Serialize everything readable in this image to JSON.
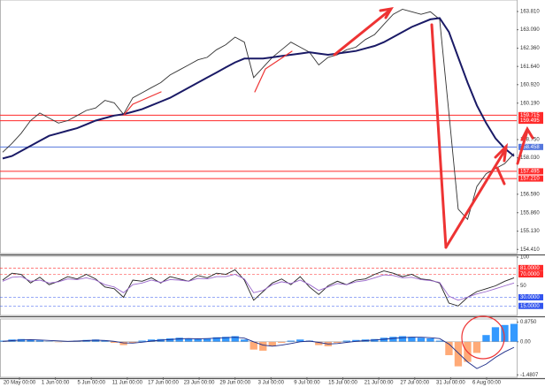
{
  "chart_data": [
    {
      "type": "line",
      "ylim": [
        154.28,
        164.23
      ],
      "yticks": [
        {
          "value": 163.81,
          "label": "163.810"
        },
        {
          "value": 163.09,
          "label": "163.090"
        },
        {
          "value": 162.36,
          "label": "162.360"
        },
        {
          "value": 161.64,
          "label": "161.640"
        },
        {
          "value": 160.92,
          "label": "160.920"
        },
        {
          "value": 160.19,
          "label": "160.190"
        },
        {
          "value": 158.75,
          "label": "158.750"
        },
        {
          "value": 158.03,
          "label": "158.030"
        },
        {
          "value": 156.59,
          "label": "156.590"
        },
        {
          "value": 155.86,
          "label": "155.860"
        },
        {
          "value": 155.13,
          "label": "155.130"
        },
        {
          "value": 154.41,
          "label": "154.410"
        }
      ],
      "levels": [
        {
          "value": 159.715,
          "label": "159.715",
          "color": "#ff2a2a"
        },
        {
          "value": 159.495,
          "label": "159.495",
          "color": "#ff2a2a"
        },
        {
          "value": 158.458,
          "label": "158.458",
          "color": "#5577dd"
        },
        {
          "value": 157.495,
          "label": "157.495",
          "color": "#ff2a2a"
        },
        {
          "value": 157.21,
          "label": "157.210",
          "color": "#ff2a2a"
        }
      ],
      "series": [
        {
          "color": "#333333",
          "values": [
            158.25,
            158.6,
            159.0,
            159.5,
            159.8,
            159.6,
            159.4,
            159.5,
            159.7,
            159.9,
            160.0,
            160.3,
            160.2,
            159.75,
            160.4,
            160.6,
            160.8,
            161.0,
            161.3,
            161.5,
            161.7,
            161.9,
            162.0,
            162.3,
            162.5,
            162.8,
            162.6,
            161.2,
            161.6,
            162.0,
            162.3,
            162.6,
            162.4,
            162.2,
            161.7,
            162.0,
            162.1,
            162.3,
            162.4,
            162.7,
            162.9,
            163.3,
            163.7,
            163.9,
            163.8,
            163.7,
            163.8,
            163.5,
            159.8,
            156.0,
            155.6,
            156.9,
            157.4,
            157.6,
            157.8,
            158.2
          ]
        },
        {
          "color": "#1a1a66",
          "values": [
            158.0,
            158.1,
            158.3,
            158.5,
            158.7,
            158.9,
            159.0,
            159.1,
            159.2,
            159.35,
            159.5,
            159.6,
            159.7,
            159.75,
            159.85,
            159.95,
            160.1,
            160.25,
            160.4,
            160.6,
            160.8,
            161.0,
            161.2,
            161.4,
            161.6,
            161.8,
            161.95,
            161.95,
            161.95,
            162.0,
            162.05,
            162.1,
            162.15,
            162.2,
            162.15,
            162.1,
            162.15,
            162.2,
            162.25,
            162.35,
            162.45,
            162.6,
            162.8,
            163.0,
            163.2,
            163.35,
            163.5,
            163.55,
            163.0,
            162.0,
            161.0,
            160.1,
            159.4,
            158.8,
            158.4,
            158.1
          ]
        }
      ]
    },
    {
      "type": "line",
      "ylim": [
        0,
        100
      ],
      "yticks": [
        100,
        50
      ],
      "levels": [
        {
          "value": 81,
          "label": "81.0000",
          "color": "#ff2a2a"
        },
        {
          "value": 70,
          "label": "70.0000",
          "color": "#ff2a2a"
        },
        {
          "value": 30,
          "label": "30.0000",
          "color": "#3355ee"
        },
        {
          "value": 15,
          "label": "15.0000",
          "color": "#3355ee"
        }
      ],
      "series": [
        {
          "color": "#222222",
          "values": [
            60,
            72,
            70,
            55,
            65,
            52,
            58,
            66,
            62,
            70,
            62,
            48,
            45,
            30,
            60,
            58,
            64,
            55,
            66,
            62,
            58,
            68,
            64,
            72,
            70,
            78,
            60,
            25,
            40,
            55,
            62,
            52,
            66,
            48,
            35,
            50,
            58,
            52,
            60,
            62,
            70,
            76,
            72,
            66,
            70,
            62,
            60,
            55,
            20,
            15,
            30,
            40,
            45,
            50,
            58,
            64
          ]
        },
        {
          "color": "#9966cc",
          "values": [
            58,
            65,
            66,
            58,
            60,
            55,
            57,
            62,
            61,
            64,
            60,
            52,
            48,
            38,
            52,
            55,
            60,
            56,
            61,
            60,
            58,
            63,
            62,
            66,
            66,
            70,
            62,
            38,
            42,
            52,
            57,
            54,
            60,
            52,
            42,
            48,
            54,
            52,
            57,
            59,
            64,
            69,
            68,
            64,
            65,
            61,
            59,
            56,
            32,
            25,
            30,
            36,
            40,
            45,
            50,
            55
          ]
        }
      ]
    },
    {
      "type": "bar",
      "ylim": [
        -1.55,
        0.98
      ],
      "yticks": [
        {
          "value": 0.875,
          "label": "0.8750"
        },
        {
          "value": 0,
          "label": "0.00"
        },
        {
          "value": -1.4807,
          "label": "-1.4807"
        }
      ],
      "color": "#3399ff",
      "negative_color": "#ffaa77",
      "values": [
        0.05,
        0.1,
        0.12,
        0.1,
        0.06,
        0.02,
        -0.02,
        0.0,
        0.05,
        0.08,
        0.1,
        0.05,
        -0.05,
        -0.15,
        -0.05,
        0.05,
        0.1,
        0.12,
        0.15,
        0.18,
        0.15,
        0.12,
        0.15,
        0.2,
        0.22,
        0.25,
        0.1,
        -0.35,
        -0.4,
        -0.2,
        -0.05,
        0.05,
        0.1,
        0.05,
        -0.15,
        -0.2,
        -0.05,
        0.05,
        0.08,
        0.1,
        0.12,
        0.18,
        0.22,
        0.25,
        0.22,
        0.18,
        0.15,
        0.05,
        -0.6,
        -1.1,
        -0.9,
        -0.5,
        0.3,
        0.65,
        0.75,
        0.8
      ],
      "series": [
        {
          "color": "#1a2a88",
          "values": [
            0.02,
            0.05,
            0.08,
            0.09,
            0.08,
            0.06,
            0.04,
            0.02,
            0.03,
            0.05,
            0.07,
            0.06,
            0.02,
            -0.05,
            -0.06,
            -0.02,
            0.03,
            0.07,
            0.1,
            0.13,
            0.14,
            0.13,
            0.14,
            0.16,
            0.18,
            0.2,
            0.16,
            0.0,
            -0.15,
            -0.2,
            -0.15,
            -0.08,
            0.0,
            0.03,
            -0.03,
            -0.1,
            -0.08,
            -0.03,
            0.02,
            0.05,
            0.08,
            0.11,
            0.15,
            0.18,
            0.2,
            0.2,
            0.18,
            0.14,
            -0.1,
            -0.5,
            -0.9,
            -1.2,
            -1.0,
            -0.7,
            -0.45,
            -0.25
          ]
        }
      ]
    }
  ],
  "time_axis": [
    "20 May 00:00",
    "1 Jun 00:00",
    "5 Jun 00:00",
    "11 Jun 00:00",
    "17 Jun 00:00",
    "23 Jun 00:00",
    "29 Jun 00:00",
    "3 Jul 00:00",
    "9 Jul 00:00",
    "15 Jul 00:00",
    "21 Jul 00:00",
    "27 Jul 00:00",
    "31 Jul 00:00",
    "6 Aug 00:00"
  ]
}
